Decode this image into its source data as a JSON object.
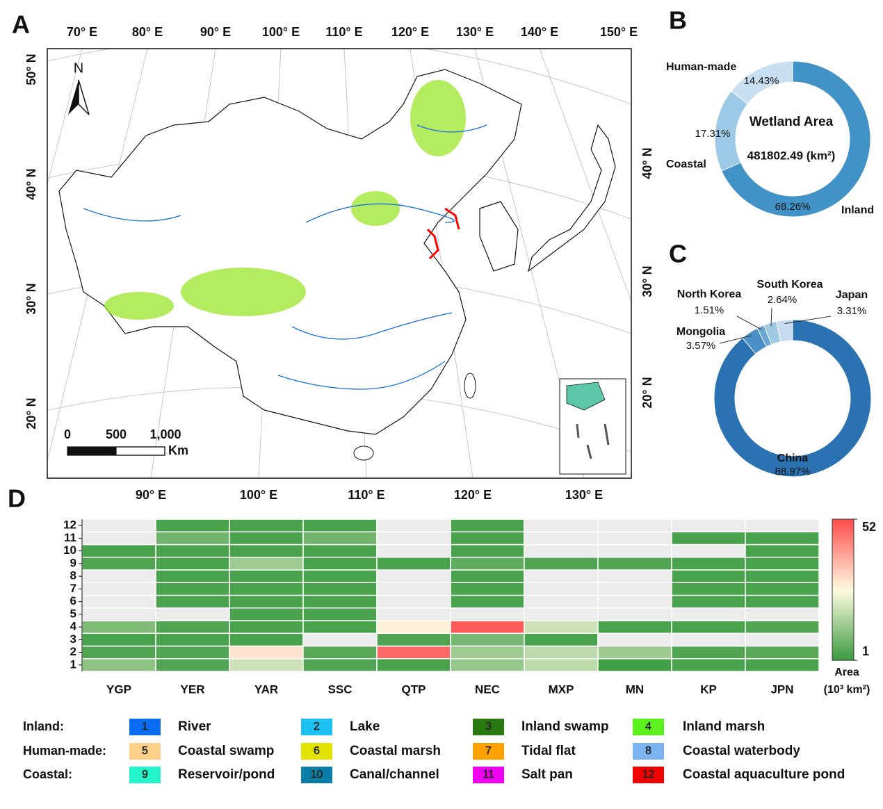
{
  "panel_labels": [
    "A",
    "B",
    "C",
    "D"
  ],
  "map": {
    "top_lon_labels": [
      "70° E",
      "80° E",
      "90° E",
      "100° E",
      "110° E",
      "120° E",
      "130° E",
      "140° E",
      "150° E"
    ],
    "bottom_lon_labels": [
      "90° E",
      "100° E",
      "110° E",
      "120° E",
      "130° E"
    ],
    "left_lat_labels": [
      "50° N",
      "40° N",
      "30° N",
      "20° N"
    ],
    "right_lat_labels": [
      "40° N",
      "30° N",
      "20° N"
    ],
    "north": "N",
    "scale_labels": [
      "0",
      "500",
      "1,000"
    ],
    "scale_unit": "Km"
  },
  "chart_data": [
    {
      "type": "donut",
      "center_title": "Wetland Area",
      "center_value": "481802.49 (km²)",
      "categories": [
        "Inland",
        "Coastal",
        "Human-made"
      ],
      "values": [
        68.26,
        17.31,
        14.43
      ],
      "value_labels": [
        "68.26%",
        "17.31%",
        "14.43%"
      ],
      "colors": [
        "#4192c6",
        "#9ccae6",
        "#c8e0f1"
      ]
    },
    {
      "type": "donut",
      "categories": [
        "China",
        "Mongolia",
        "North Korea",
        "South Korea",
        "Japan"
      ],
      "values": [
        88.97,
        3.57,
        1.51,
        2.64,
        3.31
      ],
      "value_labels": [
        "88.97%",
        "3.57%",
        "1.51%",
        "2.64%",
        "3.31%"
      ],
      "colors": [
        "#2b72b3",
        "#4a90c6",
        "#6aa6d4",
        "#9ecae1",
        "#c6dbef"
      ]
    },
    {
      "type": "heatmap",
      "x": [
        "YGP",
        "YER",
        "YAR",
        "SSC",
        "QTP",
        "NEC",
        "MXP",
        "MN",
        "KP",
        "JPN"
      ],
      "y": [
        "1",
        "2",
        "3",
        "4",
        "5",
        "6",
        "7",
        "8",
        "9",
        "10",
        "11",
        "12"
      ],
      "values": [
        [
          12,
          4,
          20,
          4,
          3,
          13,
          18,
          2,
          3,
          3
        ],
        [
          4,
          4,
          30,
          5,
          48,
          14,
          18,
          14,
          4,
          5
        ],
        [
          3,
          3,
          3,
          null,
          4,
          9,
          3,
          null,
          null,
          null
        ],
        [
          10,
          4,
          3,
          3,
          28,
          50,
          20,
          3,
          3,
          4
        ],
        [
          null,
          null,
          3,
          3,
          null,
          null,
          null,
          null,
          null,
          null
        ],
        [
          null,
          3,
          3,
          3,
          null,
          3,
          null,
          null,
          3,
          3
        ],
        [
          null,
          3,
          3,
          3,
          null,
          3,
          null,
          null,
          3,
          3
        ],
        [
          null,
          3,
          3,
          3,
          null,
          3,
          null,
          null,
          3,
          3
        ],
        [
          4,
          3,
          14,
          3,
          3,
          6,
          4,
          4,
          3,
          3
        ],
        [
          3,
          3,
          3,
          3,
          null,
          3,
          null,
          null,
          null,
          3
        ],
        [
          null,
          8,
          3,
          8,
          null,
          3,
          null,
          null,
          3,
          3
        ],
        [
          null,
          3,
          3,
          3,
          null,
          3,
          null,
          null,
          null,
          null
        ]
      ],
      "colors": [
        "#3a9a3f",
        "#fffbe0",
        "#ff4d4d"
      ],
      "missing_color": "#ececec",
      "clim": [
        1,
        52
      ],
      "cticks": [
        1,
        52
      ],
      "colorbar_title": "Area",
      "colorbar_unit": "(10³ km²)"
    }
  ],
  "legend": {
    "groups": [
      "Inland:",
      "Human-made:",
      "Coastal:"
    ],
    "items": [
      {
        "number": "1",
        "name": "River",
        "color": "#0a6cf0"
      },
      {
        "number": "2",
        "name": "Lake",
        "color": "#1ec2f2"
      },
      {
        "number": "3",
        "name": "Inland swamp",
        "color": "#2a7a12"
      },
      {
        "number": "4",
        "name": "Inland marsh",
        "color": "#5cf01e"
      },
      {
        "number": "5",
        "name": "Coastal swamp",
        "color": "#fdd08a"
      },
      {
        "number": "6",
        "name": "Coastal marsh",
        "color": "#e2e400"
      },
      {
        "number": "7",
        "name": "Tidal flat",
        "color": "#ffa200"
      },
      {
        "number": "8",
        "name": "Coastal waterbody",
        "color": "#7cb4f2"
      },
      {
        "number": "9",
        "name": "Reservoir/pond",
        "color": "#22f5c8"
      },
      {
        "number": "10",
        "name": "Canal/channel",
        "color": "#0a7ea8"
      },
      {
        "number": "11",
        "name": "Salt pan",
        "color": "#f000f0"
      },
      {
        "number": "12",
        "name": "Coastal aquaculture pond",
        "color": "#f00000"
      }
    ]
  }
}
